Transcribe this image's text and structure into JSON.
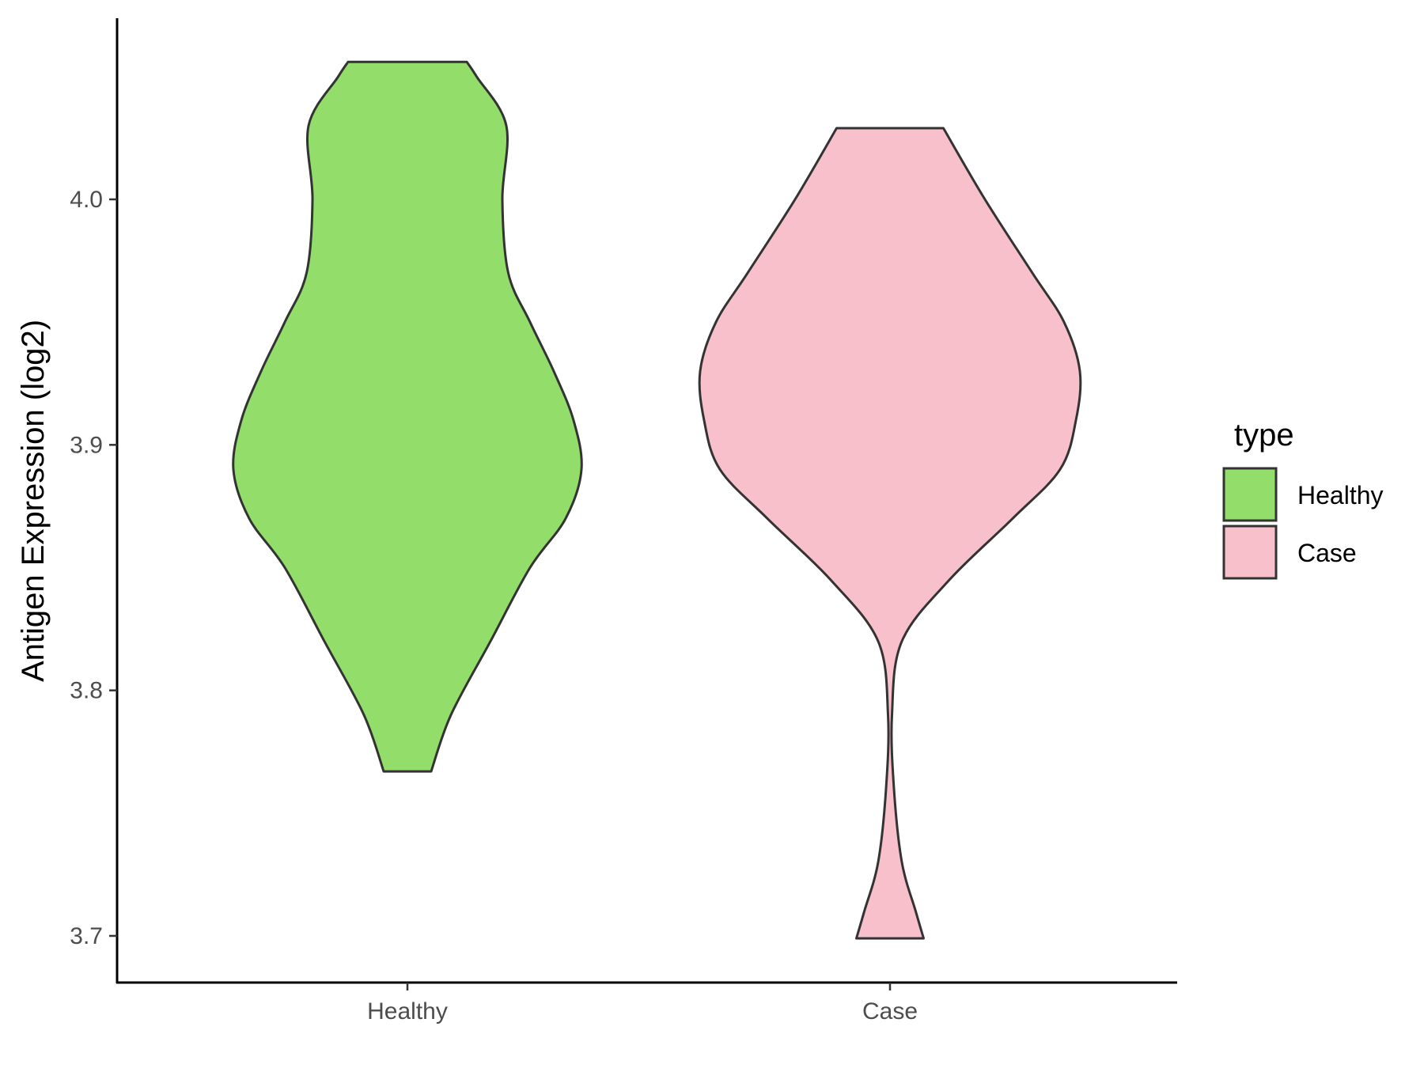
{
  "chart_data": {
    "type": "violin",
    "title": "",
    "xlabel": "",
    "ylabel": "Antigen Expression (log2)",
    "ylim": [
      3.68,
      4.075
    ],
    "yticks": [
      "3.7",
      "3.8",
      "3.9",
      "4.0"
    ],
    "categories": [
      "Healthy",
      "Case"
    ],
    "series": [
      {
        "name": "Healthy",
        "color": "#93DD6A",
        "min": 3.767,
        "max": 4.056,
        "density_profile": [
          [
            3.767,
            0.12
          ],
          [
            3.79,
            0.22
          ],
          [
            3.82,
            0.42
          ],
          [
            3.85,
            0.62
          ],
          [
            3.87,
            0.8
          ],
          [
            3.89,
            0.88
          ],
          [
            3.91,
            0.84
          ],
          [
            3.93,
            0.74
          ],
          [
            3.95,
            0.62
          ],
          [
            3.97,
            0.51
          ],
          [
            4.0,
            0.48
          ],
          [
            4.03,
            0.5
          ],
          [
            4.05,
            0.35
          ],
          [
            4.056,
            0.3
          ]
        ]
      },
      {
        "name": "Case",
        "color": "#F7C0CB",
        "min": 3.699,
        "max": 4.029,
        "density_profile": [
          [
            3.699,
            0.17
          ],
          [
            3.71,
            0.13
          ],
          [
            3.73,
            0.06
          ],
          [
            3.76,
            0.02
          ],
          [
            3.79,
            0.01
          ],
          [
            3.82,
            0.06
          ],
          [
            3.845,
            0.3
          ],
          [
            3.87,
            0.62
          ],
          [
            3.89,
            0.86
          ],
          [
            3.91,
            0.94
          ],
          [
            3.93,
            0.96
          ],
          [
            3.95,
            0.88
          ],
          [
            3.97,
            0.72
          ],
          [
            4.0,
            0.48
          ],
          [
            4.029,
            0.27
          ]
        ]
      }
    ],
    "legend": {
      "title": "type",
      "position": "right",
      "entries": [
        "Healthy",
        "Case"
      ]
    },
    "grid": false
  }
}
